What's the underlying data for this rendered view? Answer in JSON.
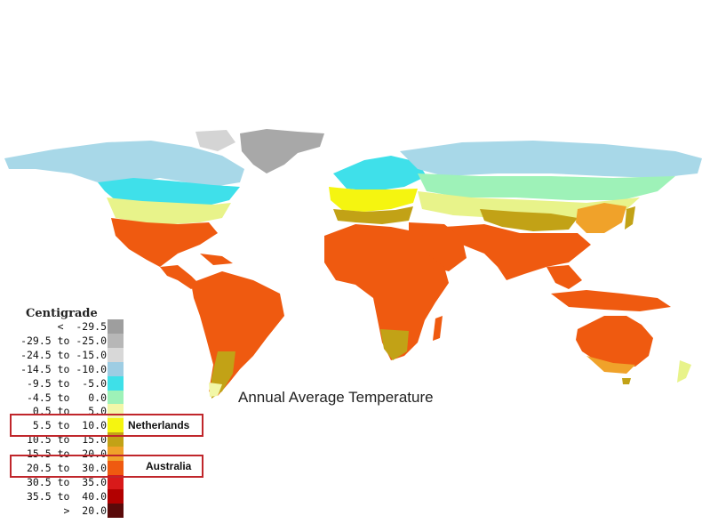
{
  "map": {
    "title": "Annual Average Temperature",
    "legend": {
      "title": "Centigrade",
      "entries": [
        {
          "label": "<  -29.5",
          "color": "#9e9e9e"
        },
        {
          "label": "-29.5 to -25.0",
          "color": "#b7b7b7"
        },
        {
          "label": "-24.5 to -15.0",
          "color": "#d8d8d8"
        },
        {
          "label": "-14.5 to -10.0",
          "color": "#9ecde3"
        },
        {
          "label": "-9.5 to  -5.0",
          "color": "#3ee0e8"
        },
        {
          "label": "-4.5 to   0.0",
          "color": "#9ef2b8"
        },
        {
          "label": "0.5 to   5.0",
          "color": "#f2f7a8"
        },
        {
          "label": "5.5 to  10.0",
          "color": "#f5f510"
        },
        {
          "label": "10.5 to  15.0",
          "color": "#c2a216"
        },
        {
          "label": "15.5 to  20.0",
          "color": "#f0a22a"
        },
        {
          "label": "20.5 to  30.0",
          "color": "#ef5a10"
        },
        {
          "label": "30.5 to  35.0",
          "color": "#d91a1a"
        },
        {
          "label": "35.5 to  40.0",
          "color": "#b20000"
        },
        {
          "label": ">  20.0",
          "color": "#5a0a0a"
        }
      ]
    },
    "highlights": [
      {
        "label": "Netherlands",
        "legend_range": "5.5 to  10.0"
      },
      {
        "label": "Australia",
        "legend_range": "20.5 to  30.0"
      }
    ],
    "colors": {
      "highlight_border": "#c0262b",
      "ocean": "#ffffff"
    }
  }
}
